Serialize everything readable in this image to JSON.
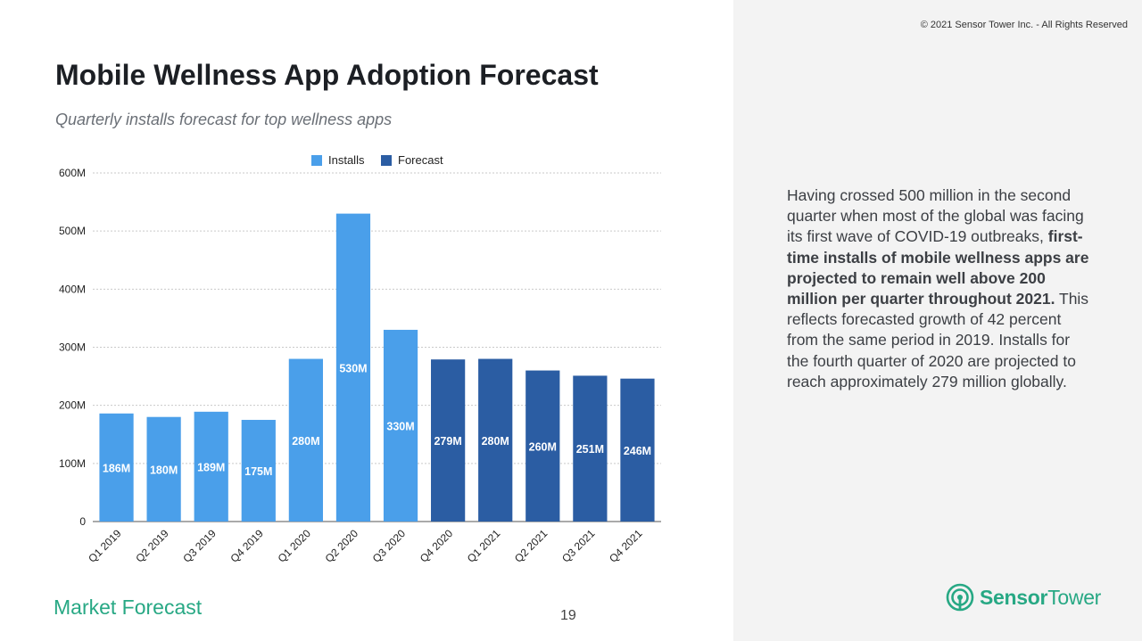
{
  "header": {
    "title": "Mobile Wellness App Adoption Forecast",
    "subtitle": "Quarterly installs forecast for top wellness apps",
    "copyright": "© 2021 Sensor Tower Inc. - All Rights Reserved"
  },
  "footer": {
    "section": "Market Forecast",
    "page_number": "19",
    "logo_word_1": "Sensor",
    "logo_word_2": "Tower"
  },
  "commentary": {
    "intro": "Having crossed 500 million in the second quarter when most of the global was facing its first wave of COVID-19 outbreaks, ",
    "highlight": "first-time installs of mobile wellness apps are projected to remain well above 200 million per quarter throughout 2021.",
    "rest": " This reflects forecasted growth of 42 percent from the same period in 2019. Installs for the fourth quarter of 2020 are projected to reach approximately 279 million globally."
  },
  "colors": {
    "installs": "#4a9fea",
    "forecast": "#2b5da3",
    "brand": "#27a884"
  },
  "chart_data": {
    "type": "bar",
    "title": "Mobile Wellness App Adoption Forecast",
    "subtitle": "Quarterly installs forecast for top wellness apps",
    "categories": [
      "Q1 2019",
      "Q2 2019",
      "Q3 2019",
      "Q4 2019",
      "Q1 2020",
      "Q2 2020",
      "Q3 2020",
      "Q4 2020",
      "Q1 2021",
      "Q2 2021",
      "Q3 2021",
      "Q4 2021"
    ],
    "series": [
      {
        "name": "Installs",
        "values": [
          186,
          180,
          189,
          175,
          280,
          530,
          330,
          null,
          null,
          null,
          null,
          null
        ]
      },
      {
        "name": "Forecast",
        "values": [
          null,
          null,
          null,
          null,
          null,
          null,
          null,
          279,
          280,
          260,
          251,
          246
        ]
      }
    ],
    "data_labels": [
      "186M",
      "180M",
      "189M",
      "175M",
      "280M",
      "530M",
      "330M",
      "279M",
      "280M",
      "260M",
      "251M",
      "246M"
    ],
    "yticks": [
      "0",
      "100M",
      "200M",
      "300M",
      "400M",
      "500M",
      "600M"
    ],
    "ylim": [
      0,
      600
    ],
    "unit": "M",
    "grid": true,
    "legend": "top-center"
  }
}
